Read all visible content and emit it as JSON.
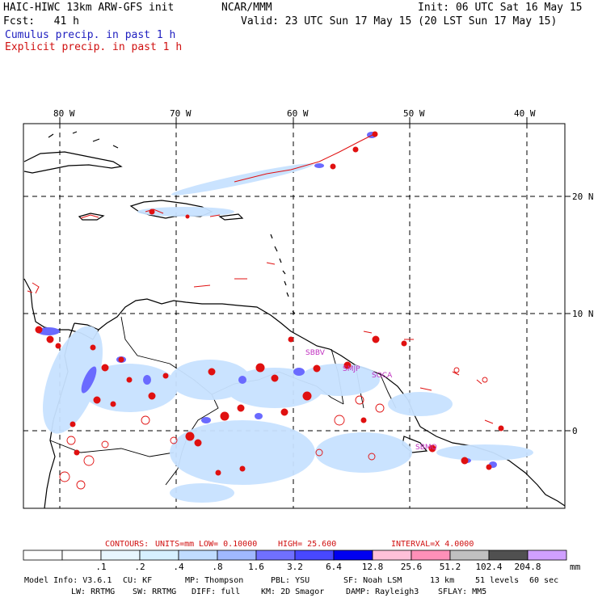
{
  "header": {
    "model": "HAIC-HIWC 13km ARW-GFS init",
    "org": "NCAR/MMM",
    "init": "Init: 06 UTC Sat 16 May 15",
    "fcst": "Fcst:   41 h",
    "valid": "Valid: 23 UTC Sun 17 May 15 (20 LST Sun 17 May 15)",
    "cumulus": "Cumulus precip. in past 1 h",
    "explicit": "Explicit precip. in past 1 h"
  },
  "map": {
    "lon_labels": [
      "80 W",
      "70 W",
      "60 W",
      "50 W",
      "40 W"
    ],
    "lat_labels": [
      "20 N",
      "10 N",
      "0"
    ],
    "stations": [
      "SBBV",
      "SMJP",
      "SOCA",
      "SBMQ"
    ]
  },
  "contours": {
    "label": "CONTOURS:",
    "units": "UNITS=mm",
    "low": "LOW= 0.10000",
    "high": "HIGH=  25.600",
    "interval": "INTERVAL=X  4.0000"
  },
  "colorbar": {
    "ticks": [
      ".1",
      ".2",
      ".4",
      ".8",
      "1.6",
      "3.2",
      "6.4",
      "12.8",
      "25.6",
      "51.2",
      "102.4",
      "204.8"
    ],
    "unit": "mm",
    "colors": [
      "#ffffff",
      "#ffffff",
      "#e8f6ff",
      "#d6f0ff",
      "#c0dcff",
      "#a0b8ff",
      "#7070ff",
      "#4848ff",
      "#0000f0",
      "#ffc0d8",
      "#ff90b8",
      "#c0c0c0",
      "#505050",
      "#d0a0ff"
    ]
  },
  "model_info": {
    "line1": [
      "Model Info: V3.6.1",
      "CU: KF",
      "MP: Thompson",
      "PBL: YSU",
      "SF: Noah LSM",
      "13 km",
      "51 levels",
      "60 sec"
    ],
    "line2": [
      "LW: RRTMG",
      "SW: RRTMG",
      "DIFF: full",
      "KM: 2D Smagor",
      "DAMP: Rayleigh3",
      "SFLAY: MM5"
    ]
  }
}
